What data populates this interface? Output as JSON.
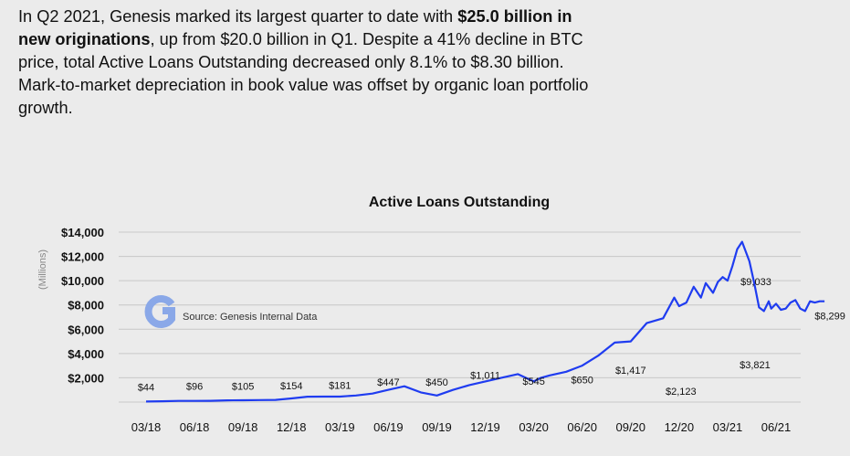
{
  "intro": {
    "part1": "In Q2 2021, Genesis marked its largest quarter to date with ",
    "bold": "$25.0 billion in new originations",
    "part2": ", up from $20.0 billion in Q1. Despite a 41% decline in BTC price, total Active Loans Outstanding decreased only 8.1% to $8.30 billion. Mark-to-market depreciation in book value was offset by organic loan portfolio growth."
  },
  "chart_data": {
    "type": "line",
    "title": "Active Loans Outstanding",
    "ylabel": "(Millions)",
    "xlabel": "",
    "ylim": [
      0,
      14000
    ],
    "y_ticks": [
      "$2,000",
      "$4,000",
      "$6,000",
      "$8,000",
      "$10,000",
      "$12,000",
      "$14,000"
    ],
    "y_tick_values": [
      2000,
      4000,
      6000,
      8000,
      10000,
      12000,
      14000
    ],
    "x_ticks": [
      "03/18",
      "06/18",
      "09/18",
      "12/18",
      "03/19",
      "06/19",
      "09/19",
      "12/19",
      "03/20",
      "06/20",
      "09/20",
      "12/20",
      "03/21",
      "06/21"
    ],
    "grid": true,
    "series": [
      {
        "color": "#1f3cf0",
        "x": [
          0,
          0.33,
          0.67,
          1,
          1.33,
          1.67,
          2,
          2.33,
          2.67,
          3,
          3.33,
          3.67,
          4,
          4.33,
          4.67,
          5,
          5.33,
          5.67,
          6,
          6.33,
          6.67,
          7,
          7.33,
          7.67,
          8,
          8.15,
          8.33,
          8.67,
          9,
          9.33,
          9.67,
          10,
          10.33,
          10.67,
          10.9,
          11,
          11.15,
          11.3,
          11.45,
          11.55,
          11.7,
          11.8,
          11.9,
          12,
          12.1,
          12.2,
          12.3,
          12.45,
          12.55,
          12.65,
          12.75,
          12.85,
          12.9,
          13,
          13.1,
          13.2,
          13.3,
          13.4,
          13.5,
          13.6,
          13.7,
          13.8,
          13.9,
          14
        ],
        "y": [
          44,
          70,
          96,
          100,
          105,
          140,
          154,
          165,
          181,
          300,
          447,
          450,
          450,
          540,
          700,
          1011,
          1300,
          800,
          545,
          1000,
          1400,
          1700,
          2000,
          2300,
          1700,
          2000,
          2200,
          2500,
          3000,
          3821,
          4900,
          5000,
          6500,
          6900,
          8600,
          7900,
          8200,
          9500,
          8600,
          9800,
          9000,
          9900,
          10300,
          10000,
          11200,
          12600,
          13200,
          11600,
          9800,
          7800,
          7500,
          8300,
          7700,
          8100,
          7600,
          7700,
          8200,
          8400,
          7700,
          7500,
          8299,
          8200,
          8300,
          8299
        ]
      }
    ],
    "annotations": [
      {
        "x": 0,
        "y": 44,
        "label": "$44"
      },
      {
        "x": 1,
        "y": 96,
        "label": "$96"
      },
      {
        "x": 2,
        "y": 105,
        "label": "$105"
      },
      {
        "x": 3,
        "y": 154,
        "label": "$154"
      },
      {
        "x": 4,
        "y": 181,
        "label": "$181"
      },
      {
        "x": 5,
        "y": 447,
        "label": "$447"
      },
      {
        "x": 6,
        "y": 450,
        "label": "$450"
      },
      {
        "x": 7,
        "y": 1011,
        "label": "$1,011"
      },
      {
        "x": 8,
        "y": 545,
        "label": "$545"
      },
      {
        "x": 9,
        "y": 650,
        "label": "$650"
      },
      {
        "x": 10,
        "y": 1417,
        "label": "$1,417"
      },
      {
        "x": 11,
        "y": 2123,
        "label": "$2,123"
      },
      {
        "x": 12,
        "y": 3821,
        "label": "$3,821"
      },
      {
        "x": 13,
        "y": 9033,
        "label": "$9,033"
      },
      {
        "x": 14,
        "y": 8299,
        "label": "$8,299"
      }
    ],
    "legend": "none",
    "source": "Source: Genesis Internal Data"
  },
  "logo": {
    "icon": "genesis-g-logo-icon",
    "color": "#8aa8e8"
  }
}
